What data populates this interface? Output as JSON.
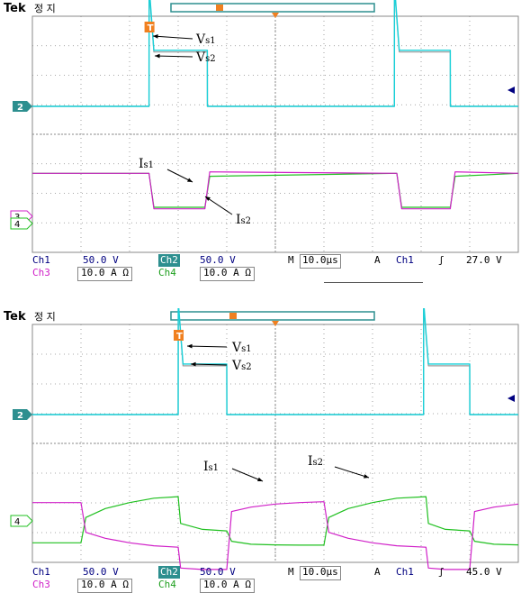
{
  "colors": {
    "ch2": "#18d0d8",
    "ch3": "#d020c8",
    "ch4": "#20c020",
    "grid": "#8a8a8a",
    "text": "#000080",
    "hl": "#2d8f8f"
  },
  "scopes": [
    {
      "brand": "Tek",
      "state": "정 지",
      "markers": {
        "ch2": "2",
        "ch3": "3",
        "ch4": "4"
      },
      "annotations": {
        "vs1": "Vs1",
        "vs2": "Vs2",
        "is1": "Is1",
        "is2": "Is2"
      },
      "status": {
        "ch1_name": "Ch1",
        "ch1_scale": "50.0 V",
        "ch2_name": "Ch2",
        "ch2_scale": "50.0 V",
        "ch3_name": "Ch3",
        "ch3_scale": "10.0 A Ω",
        "ch4_name": "Ch4",
        "ch4_scale": "10.0 A Ω",
        "timebase_label": "M",
        "timebase": "10.0µs",
        "trigger_label": "A",
        "trigger_source": "Ch1",
        "trigger_slope": "ʃ",
        "trigger_level": "27.0 V"
      }
    },
    {
      "brand": "Tek",
      "state": "정 지",
      "markers": {
        "ch2": "2",
        "ch4": "4"
      },
      "annotations": {
        "vs1": "Vs1",
        "vs2": "Vs2",
        "is1": "Is1",
        "is2": "Is2"
      },
      "status": {
        "ch1_name": "Ch1",
        "ch1_scale": "50.0 V",
        "ch2_name": "Ch2",
        "ch2_scale": "50.0 V",
        "ch3_name": "Ch3",
        "ch3_scale": "10.0 A Ω",
        "ch4_name": "Ch4",
        "ch4_scale": "10.0 A Ω",
        "timebase_label": "M",
        "timebase": "10.0µs",
        "trigger_label": "A",
        "trigger_source": "Ch1",
        "trigger_slope": "ʃ",
        "trigger_level": "45.0 V"
      }
    }
  ],
  "chart_data": [
    {
      "type": "line",
      "x_unit": "µs",
      "x_per_div": 10,
      "x_range": [
        0,
        100
      ],
      "series": [
        {
          "name": "Vs1",
          "channel": "Ch1",
          "scale_per_div": 50,
          "unit": "V",
          "x": [
            0,
            24,
            24.01,
            25,
            36,
            36.01,
            74.5,
            74.51,
            75.5,
            86,
            86.01,
            100
          ],
          "y": [
            0,
            0,
            205,
            95,
            95,
            0,
            0,
            205,
            95,
            95,
            0,
            0
          ]
        },
        {
          "name": "Vs2",
          "channel": "Ch2",
          "scale_per_div": 50,
          "unit": "V",
          "x": [
            0,
            24,
            24.01,
            25,
            36,
            36.01,
            74.5,
            74.51,
            75.5,
            86,
            86.01,
            100
          ],
          "y": [
            0,
            0,
            200,
            92,
            92,
            0,
            0,
            200,
            92,
            92,
            0,
            0
          ]
        },
        {
          "name": "Is1",
          "channel": "Ch3",
          "scale_per_div": 10,
          "unit": "A",
          "x": [
            0,
            24,
            25,
            35.5,
            36.5,
            75,
            76,
            86,
            87,
            100
          ],
          "y": [
            6,
            6,
            -6,
            -6,
            6.5,
            6,
            -6,
            -6,
            6.5,
            6
          ]
        },
        {
          "name": "Is2",
          "channel": "Ch4",
          "scale_per_div": 10,
          "unit": "A",
          "x": [
            0,
            24,
            25,
            35.5,
            36.5,
            75,
            76,
            86,
            87,
            100
          ],
          "y": [
            6,
            6,
            -5.5,
            -5.5,
            5,
            6,
            -5.5,
            -5.5,
            5,
            6
          ]
        }
      ]
    },
    {
      "type": "line",
      "x_unit": "µs",
      "x_per_div": 10,
      "x_range": [
        0,
        100
      ],
      "series": [
        {
          "name": "Vs1",
          "channel": "Ch1",
          "scale_per_div": 50,
          "unit": "V",
          "x": [
            0,
            30,
            30.01,
            31,
            40,
            40.01,
            80.5,
            80.51,
            81.5,
            90,
            90.01,
            100
          ],
          "y": [
            0,
            0,
            190,
            85,
            85,
            0,
            0,
            190,
            85,
            85,
            0,
            0
          ]
        },
        {
          "name": "Vs2",
          "channel": "Ch2",
          "scale_per_div": 50,
          "unit": "V",
          "x": [
            0,
            30,
            30.01,
            31,
            40,
            40.01,
            80.5,
            80.51,
            81.5,
            90,
            90.01,
            100
          ],
          "y": [
            0,
            0,
            185,
            82,
            82,
            0,
            0,
            185,
            82,
            82,
            0,
            0
          ]
        },
        {
          "name": "Is1",
          "channel": "Ch3",
          "scale_per_div": 10,
          "unit": "A",
          "x": [
            0,
            10,
            11,
            15,
            20,
            25,
            30,
            30.5,
            35,
            40,
            41,
            45,
            50,
            55,
            60,
            61,
            65,
            70,
            75,
            81,
            81.5,
            85,
            90,
            91,
            95,
            100
          ],
          "y": [
            11,
            11,
            1,
            -1,
            -2.5,
            -3.5,
            -4,
            -11,
            -11.5,
            -11.5,
            8,
            9.5,
            10.5,
            11,
            11.3,
            1,
            -1,
            -2.5,
            -3.5,
            -4,
            -11,
            -11.5,
            -11.5,
            8,
            9.5,
            10.5
          ]
        },
        {
          "name": "Is2",
          "channel": "Ch4",
          "scale_per_div": 10,
          "unit": "A",
          "x": [
            0,
            10,
            11,
            15,
            20,
            25,
            30,
            30.5,
            35,
            40,
            41,
            45,
            50,
            55,
            60,
            61,
            65,
            70,
            75,
            81,
            81.5,
            85,
            90,
            91,
            95,
            100
          ],
          "y": [
            -2.5,
            -2.5,
            6,
            9,
            11,
            12.5,
            13,
            4,
            2,
            1.5,
            -2,
            -3,
            -3.2,
            -3.3,
            -3.3,
            6,
            9,
            11,
            12.5,
            13,
            4,
            2,
            1.5,
            -2,
            -3,
            -3.2
          ]
        }
      ]
    }
  ]
}
